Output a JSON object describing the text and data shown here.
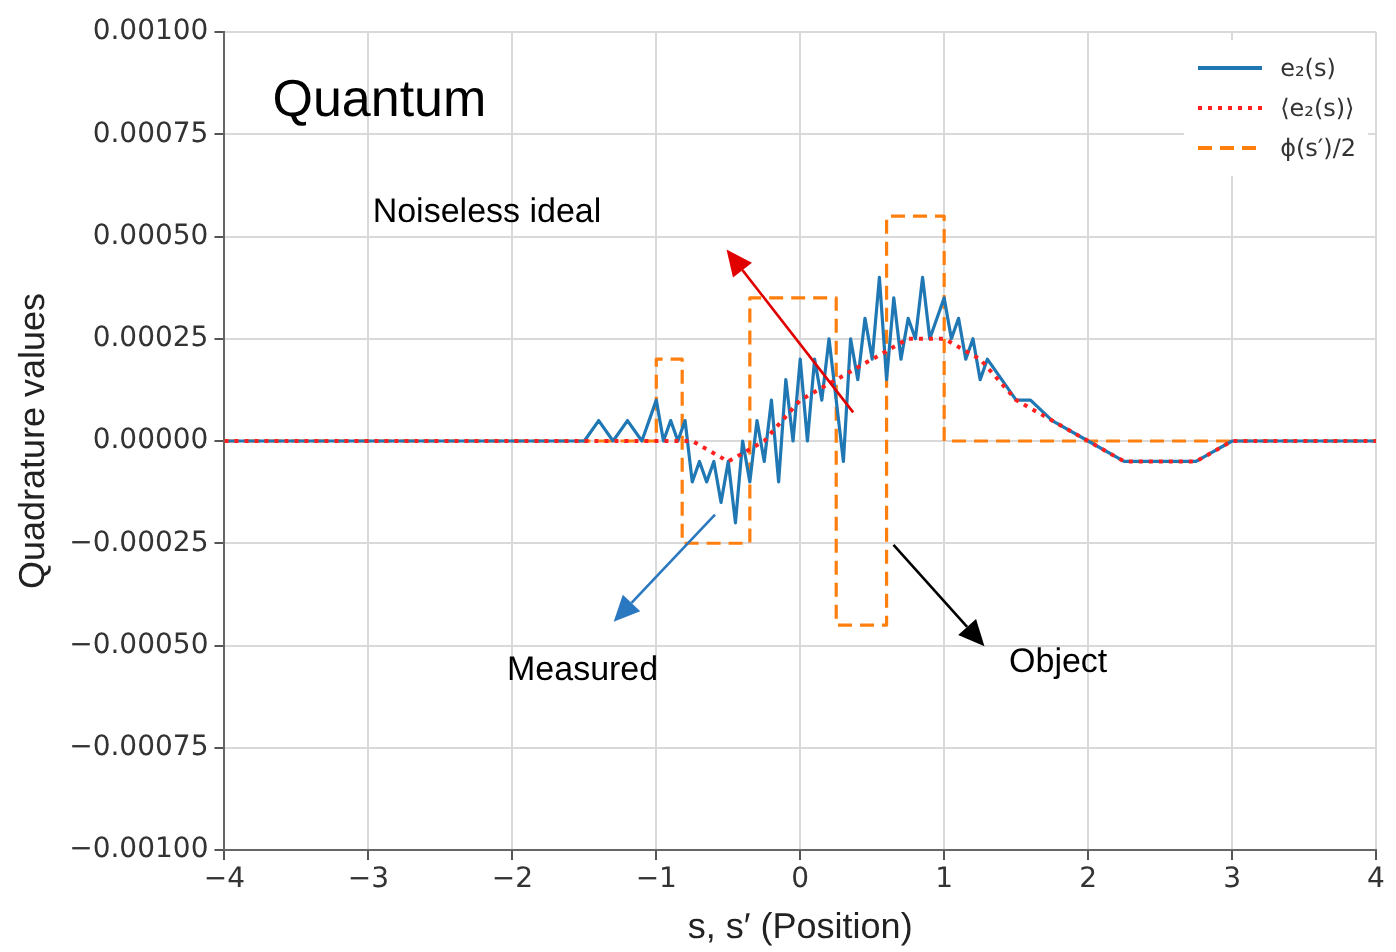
{
  "chart_data": {
    "type": "line",
    "xlabel": "s, s′ (Position)",
    "ylabel": "Quadrature values",
    "xlim": [
      -4,
      4
    ],
    "xticks": [
      {
        "value": -4,
        "label": "−4"
      },
      {
        "value": -3,
        "label": "−3"
      },
      {
        "value": -2,
        "label": "−2"
      },
      {
        "value": -1,
        "label": "−1"
      },
      0,
      1,
      2,
      3,
      4
    ],
    "ylim": [
      -0.001,
      0.001
    ],
    "yticks": [
      {
        "value": -0.001,
        "label": "−0.00100"
      },
      {
        "value": -0.00075,
        "label": "−0.00075"
      },
      {
        "value": -0.0005,
        "label": "−0.00050"
      },
      {
        "value": -0.00025,
        "label": "−0.00025"
      },
      {
        "value": 0,
        "label": "0.00000"
      },
      {
        "value": 0.00025,
        "label": "0.00025"
      },
      {
        "value": 0.0005,
        "label": "0.00050"
      },
      {
        "value": 0.00075,
        "label": "0.00075"
      },
      {
        "value": 0.001,
        "label": "0.00100"
      }
    ],
    "grid": true,
    "legend": "top right",
    "marker": "none",
    "series": [
      {
        "name": "e₂(s)",
        "color": "#1f77b4",
        "line_style": "solid",
        "x": [
          -4,
          -3.75,
          -3.5,
          -3.25,
          -3,
          -2.75,
          -2.5,
          -2.25,
          -2,
          -1.75,
          -1.5,
          -1.4,
          -1.3,
          -1.2,
          -1.1,
          -1,
          -0.95,
          -0.9,
          -0.85,
          -0.8,
          -0.75,
          -0.7,
          -0.65,
          -0.6,
          -0.55,
          -0.5,
          -0.45,
          -0.4,
          -0.35,
          -0.3,
          -0.25,
          -0.2,
          -0.15,
          -0.1,
          -0.05,
          0,
          0.05,
          0.1,
          0.15,
          0.2,
          0.25,
          0.3,
          0.35,
          0.4,
          0.45,
          0.5,
          0.55,
          0.6,
          0.65,
          0.7,
          0.75,
          0.8,
          0.85,
          0.9,
          0.95,
          1,
          1.05,
          1.1,
          1.15,
          1.2,
          1.25,
          1.3,
          1.4,
          1.5,
          1.6,
          1.75,
          2,
          2.25,
          2.5,
          2.75,
          3,
          3.25,
          3.5,
          3.75,
          4
        ],
        "values": [
          0,
          0,
          0,
          0,
          0,
          0,
          0,
          0,
          0,
          0,
          0,
          5e-05,
          0,
          5e-05,
          0,
          0.0001,
          0,
          5e-05,
          0,
          5e-05,
          -0.0001,
          -5e-05,
          -0.0001,
          -5e-05,
          -0.00015,
          -5e-05,
          -0.0002,
          0,
          -0.0001,
          5e-05,
          -5e-05,
          0.0001,
          -0.0001,
          0.00015,
          0,
          0.0002,
          0,
          0.0002,
          0.0001,
          0.00025,
          0.0001,
          -5e-05,
          0.00025,
          0.00015,
          0.0003,
          0.0002,
          0.0004,
          0.00015,
          0.00035,
          0.0002,
          0.0003,
          0.00025,
          0.0004,
          0.00025,
          0.0003,
          0.00035,
          0.00025,
          0.0003,
          0.0002,
          0.00025,
          0.00015,
          0.0002,
          0.00015,
          0.0001,
          0.0001,
          5e-05,
          0,
          -5e-05,
          -5e-05,
          -5e-05,
          0,
          0,
          0,
          0,
          0
        ]
      },
      {
        "name": "⟨e₂(s)⟩",
        "color": "#ff2020",
        "line_style": "dotted",
        "x": [
          -4,
          -3,
          -2,
          -1.5,
          -1.2,
          -1,
          -0.75,
          -0.5,
          -0.25,
          0,
          0.25,
          0.5,
          0.75,
          0.9,
          1,
          1.25,
          1.5,
          1.75,
          2,
          2.25,
          2.5,
          2.75,
          3,
          3.5,
          4
        ],
        "values": [
          0,
          0,
          0,
          0,
          0,
          0,
          0,
          -5e-05,
          0,
          0.0001,
          0.00015,
          0.0002,
          0.00025,
          0.00025,
          0.00025,
          0.0002,
          0.0001,
          5e-05,
          0,
          -5e-05,
          -5e-05,
          -5e-05,
          0,
          0,
          0
        ]
      },
      {
        "name": "ϕ(s′)/2",
        "color": "#ff7f0e",
        "type": "step",
        "line_style": "dashed",
        "x": [
          -4,
          -1,
          -0.82,
          -0.35,
          0.25,
          0.6,
          1,
          4
        ],
        "values": [
          0,
          0.0002,
          -0.00025,
          0.00035,
          -0.00045,
          0.00055,
          0,
          0
        ]
      }
    ],
    "annotations": [
      "Quantum",
      "Noiseless ideal",
      "Measured",
      "Object"
    ]
  }
}
